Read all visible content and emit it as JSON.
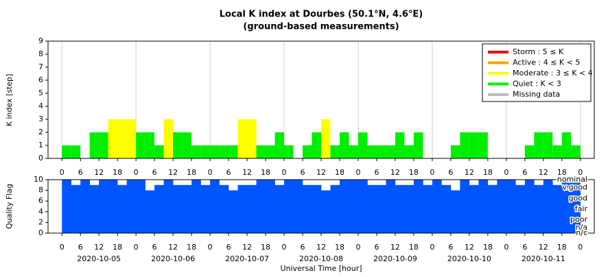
{
  "chart_data": [
    {
      "type": "bar",
      "title": "Local K index at Dourbes (50.1°N, 4.6°E)",
      "subtitle": "(ground-based measurements)",
      "y_label": "K index [step]",
      "x": [
        0,
        3,
        6,
        9,
        12,
        15,
        18,
        21,
        24,
        27,
        30,
        33,
        36,
        39,
        42,
        45,
        48,
        51,
        54,
        57,
        60,
        63,
        66,
        69,
        72,
        75,
        78,
        81,
        84,
        87,
        90,
        93,
        96,
        99,
        102,
        105,
        108,
        111,
        114,
        117,
        120,
        123,
        126,
        129,
        132,
        135,
        138,
        141,
        144,
        147,
        150,
        153,
        156,
        159,
        162,
        165
      ],
      "values": [
        1,
        1,
        0,
        2,
        2,
        3,
        3,
        3,
        2,
        2,
        1,
        3,
        2,
        2,
        1,
        1,
        1,
        1,
        1,
        3,
        3,
        1,
        1,
        2,
        1,
        0,
        1,
        2,
        3,
        1,
        2,
        1,
        2,
        1,
        1,
        1,
        2,
        1,
        2,
        0,
        0,
        0,
        1,
        2,
        2,
        2,
        0,
        0,
        0,
        0,
        1,
        2,
        2,
        1,
        2,
        1
      ],
      "bar_colors": [
        "#00ee00",
        "#00ee00",
        "#00ee00",
        "#00ee00",
        "#00ee00",
        "#ffff00",
        "#ffff00",
        "#ffff00",
        "#00ee00",
        "#00ee00",
        "#00ee00",
        "#ffff00",
        "#00ee00",
        "#00ee00",
        "#00ee00",
        "#00ee00",
        "#00ee00",
        "#00ee00",
        "#00ee00",
        "#ffff00",
        "#ffff00",
        "#00ee00",
        "#00ee00",
        "#00ee00",
        "#00ee00",
        "#00ee00",
        "#00ee00",
        "#00ee00",
        "#ffff00",
        "#00ee00",
        "#00ee00",
        "#00ee00",
        "#00ee00",
        "#00ee00",
        "#00ee00",
        "#00ee00",
        "#00ee00",
        "#00ee00",
        "#00ee00",
        "#00ee00",
        "#00ee00",
        "#00ee00",
        "#00ee00",
        "#00ee00",
        "#00ee00",
        "#00ee00",
        "#00ee00",
        "#00ee00",
        "#00ee00",
        "#00ee00",
        "#00ee00",
        "#00ee00",
        "#00ee00",
        "#00ee00",
        "#00ee00",
        "#00ee00"
      ],
      "bar_width": 3,
      "xlim": [
        -4.5,
        172.5
      ],
      "ylim": [
        0,
        9
      ],
      "yticks": [
        0,
        1,
        2,
        3,
        4,
        5,
        6,
        7,
        8,
        9
      ],
      "xticks": [
        {
          "value": 0,
          "label": "0"
        },
        {
          "value": 6,
          "label": "6"
        },
        {
          "value": 12,
          "label": "12"
        },
        {
          "value": 18,
          "label": "18"
        },
        {
          "value": 24,
          "label": "0"
        },
        {
          "value": 30,
          "label": "6"
        },
        {
          "value": 36,
          "label": "12"
        },
        {
          "value": 42,
          "label": "18"
        },
        {
          "value": 48,
          "label": "0"
        },
        {
          "value": 54,
          "label": "6"
        },
        {
          "value": 60,
          "label": "12"
        },
        {
          "value": 66,
          "label": "18"
        },
        {
          "value": 72,
          "label": "0"
        },
        {
          "value": 78,
          "label": "6"
        },
        {
          "value": 84,
          "label": "12"
        },
        {
          "value": 90,
          "label": "18"
        },
        {
          "value": 96,
          "label": "0"
        },
        {
          "value": 102,
          "label": "6"
        },
        {
          "value": 108,
          "label": "12"
        },
        {
          "value": 114,
          "label": "18"
        },
        {
          "value": 120,
          "label": "0"
        },
        {
          "value": 126,
          "label": "6"
        },
        {
          "value": 132,
          "label": "12"
        },
        {
          "value": 138,
          "label": "18"
        },
        {
          "value": 144,
          "label": "0"
        },
        {
          "value": 150,
          "label": "6"
        },
        {
          "value": 156,
          "label": "12"
        },
        {
          "value": 162,
          "label": "18"
        },
        {
          "value": 168,
          "label": "0"
        }
      ],
      "legend": [
        {
          "label": "Storm : 5 ≤ K",
          "color": "#ee0000"
        },
        {
          "label": "Active : 4 ≤ K < 5",
          "color": "#ffa500"
        },
        {
          "label": "Moderate : 3 ≤ K < 4",
          "color": "#ffff00"
        },
        {
          "label": "Quiet : K < 3",
          "color": "#00ee00"
        },
        {
          "label": "Missing data",
          "color": "#bbbbbb"
        }
      ],
      "legend_position": "upper right",
      "grid": true
    },
    {
      "type": "area",
      "y_label": "Quality Flag",
      "x_label": "Universal Time [hour]",
      "color": "#0055ff",
      "x": [
        0,
        3,
        6,
        9,
        12,
        15,
        18,
        21,
        24,
        27,
        30,
        33,
        36,
        39,
        42,
        45,
        48,
        51,
        54,
        57,
        60,
        63,
        66,
        69,
        72,
        75,
        78,
        81,
        84,
        87,
        90,
        93,
        96,
        99,
        102,
        105,
        108,
        111,
        114,
        117,
        120,
        123,
        126,
        129,
        132,
        135,
        138,
        141,
        144,
        147,
        150,
        153,
        156,
        159,
        162,
        165
      ],
      "values": [
        10,
        9,
        10,
        9,
        10,
        10,
        9,
        10,
        10,
        8,
        9,
        10,
        9,
        9,
        10,
        9,
        10,
        9,
        8,
        9,
        9,
        10,
        10,
        9,
        10,
        10,
        9,
        9,
        8,
        9,
        10,
        10,
        10,
        9,
        9,
        10,
        9,
        9,
        10,
        9,
        10,
        9,
        8,
        10,
        9,
        10,
        9,
        10,
        10,
        9,
        10,
        9,
        10,
        9,
        10,
        10
      ],
      "bar_width": 3,
      "xlim": [
        -4.5,
        172.5
      ],
      "ylim": [
        0,
        10
      ],
      "yticks": [
        0,
        2,
        4,
        6,
        8,
        10
      ],
      "xticks": [
        {
          "value": 0,
          "label": "0"
        },
        {
          "value": 6,
          "label": "6"
        },
        {
          "value": 12,
          "label": "12"
        },
        {
          "value": 18,
          "label": "18"
        },
        {
          "value": 24,
          "label": "0"
        },
        {
          "value": 30,
          "label": "6"
        },
        {
          "value": 36,
          "label": "12"
        },
        {
          "value": 42,
          "label": "18"
        },
        {
          "value": 48,
          "label": "0"
        },
        {
          "value": 54,
          "label": "6"
        },
        {
          "value": 60,
          "label": "12"
        },
        {
          "value": 66,
          "label": "18"
        },
        {
          "value": 72,
          "label": "0"
        },
        {
          "value": 78,
          "label": "6"
        },
        {
          "value": 84,
          "label": "12"
        },
        {
          "value": 90,
          "label": "18"
        },
        {
          "value": 96,
          "label": "0"
        },
        {
          "value": 102,
          "label": "6"
        },
        {
          "value": 108,
          "label": "12"
        },
        {
          "value": 114,
          "label": "18"
        },
        {
          "value": 120,
          "label": "0"
        },
        {
          "value": 126,
          "label": "6"
        },
        {
          "value": 132,
          "label": "12"
        },
        {
          "value": 138,
          "label": "18"
        },
        {
          "value": 144,
          "label": "0"
        },
        {
          "value": 150,
          "label": "6"
        },
        {
          "value": 156,
          "label": "12"
        },
        {
          "value": 162,
          "label": "18"
        },
        {
          "value": 168,
          "label": "0"
        }
      ],
      "day_labels": [
        {
          "value": 12,
          "label": "2020-10-05"
        },
        {
          "value": 36,
          "label": "2020-10-06"
        },
        {
          "value": 60,
          "label": "2020-10-07"
        },
        {
          "value": 84,
          "label": "2020-10-08"
        },
        {
          "value": 108,
          "label": "2020-10-09"
        },
        {
          "value": 132,
          "label": "2020-10-10"
        },
        {
          "value": 156,
          "label": "2020-10-11"
        }
      ],
      "quality_labels": [
        {
          "value": 10,
          "label": "nominal"
        },
        {
          "value": 8.5,
          "label": "v.good"
        },
        {
          "value": 6.5,
          "label": "good"
        },
        {
          "value": 4.5,
          "label": "fair"
        },
        {
          "value": 2.5,
          "label": "poor"
        },
        {
          "value": 1,
          "label": "n/a"
        },
        {
          "value": 0,
          "label": "n/c"
        }
      ]
    }
  ]
}
